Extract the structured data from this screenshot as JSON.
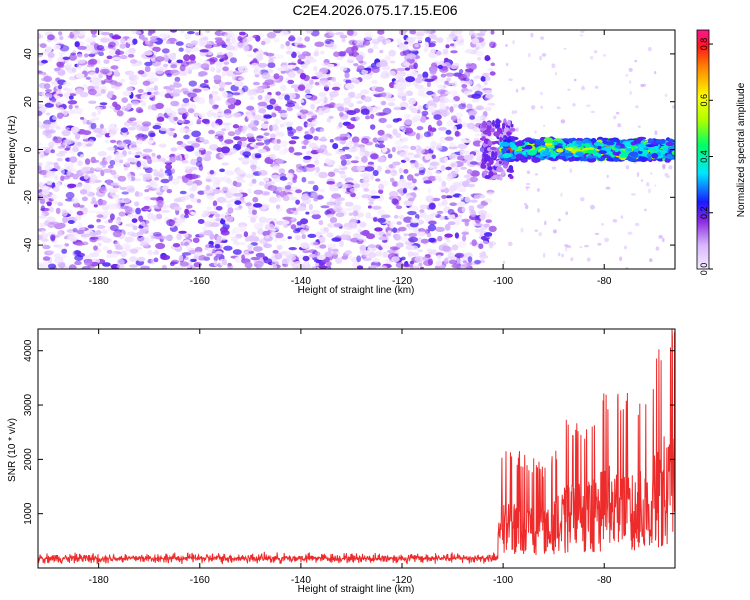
{
  "title": "C2E4.2026.075.17.15.E06",
  "chart_data": [
    {
      "type": "heatmap",
      "xlabel": "Height of straight line (km)",
      "ylabel": "Frequency (Hz)",
      "xlim": [
        -192,
        -66
      ],
      "ylim": [
        -50,
        50
      ],
      "x_ticks": [
        -180,
        -160,
        -140,
        -120,
        -100,
        -80
      ],
      "y_ticks": [
        -40,
        -20,
        0,
        20,
        40
      ],
      "grid": false,
      "colorbar": {
        "label": "Normalized spectral amplitude",
        "range": [
          0,
          0.85
        ],
        "ticks": [
          0.0,
          0.2,
          0.4,
          0.6,
          0.8
        ],
        "tick_labels": [
          "0.0",
          "0.2",
          "0.4",
          "0.6",
          "0.8"
        ]
      },
      "regions": [
        {
          "name": "noise",
          "x_range": [
            -192,
            -102
          ],
          "freq_range": [
            -50,
            50
          ],
          "amplitude_range": [
            0.0,
            0.15
          ]
        },
        {
          "name": "transition",
          "x_range": [
            -104,
            -100
          ],
          "freq_range": [
            -8,
            8
          ],
          "amplitude_range": [
            0.05,
            0.2
          ]
        },
        {
          "name": "signal",
          "x_range": [
            -100,
            -66
          ],
          "freq_center": 0,
          "freq_halfwidth": 4,
          "amplitude_range": [
            0.15,
            0.85
          ]
        }
      ]
    },
    {
      "type": "line",
      "xlabel": "Height of straight line (km)",
      "ylabel": "SNR (10 * v/v)",
      "xlim": [
        -192,
        -66
      ],
      "ylim": [
        0,
        4400
      ],
      "x_ticks": [
        -180,
        -160,
        -140,
        -120,
        -100,
        -80
      ],
      "y_ticks": [
        1000,
        2000,
        3000,
        4000
      ],
      "grid": false,
      "series_color": "#ee2b2b",
      "peaks": [
        {
          "x": -100,
          "y": 2200
        },
        {
          "x": -91,
          "y": 1800
        },
        {
          "x": -87,
          "y": 2750
        },
        {
          "x": -84,
          "y": 2600
        },
        {
          "x": -82,
          "y": 2850
        },
        {
          "x": -78,
          "y": 3450
        },
        {
          "x": -74,
          "y": 2950
        },
        {
          "x": -71,
          "y": 3300
        },
        {
          "x": -68,
          "y": 4350
        },
        {
          "x": -66,
          "y": 4350
        }
      ],
      "baseline": {
        "x_range": [
          -192,
          -101
        ],
        "mean": 180,
        "spread": 120
      }
    }
  ]
}
